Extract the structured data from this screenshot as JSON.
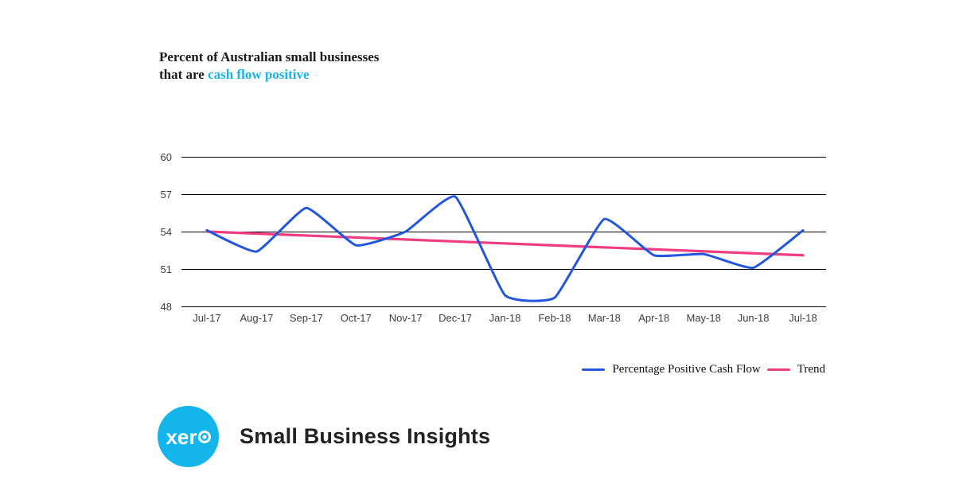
{
  "title": {
    "line1": "Percent of Australian small businesses",
    "line2_prefix": "that are ",
    "line2_highlight": "cash flow positive",
    "highlight_color": "#16b2ea",
    "text_color": "#1a1a1a"
  },
  "chart_data": {
    "type": "line",
    "title": "Percent of Australian small businesses that are cash flow positive",
    "x": [
      "Jul-17",
      "Aug-17",
      "Sep-17",
      "Oct-17",
      "Nov-17",
      "Dec-17",
      "Jan-18",
      "Feb-18",
      "Mar-18",
      "Apr-18",
      "May-18",
      "Jun-18",
      "Jul-18"
    ],
    "series": [
      {
        "name": "Percentage Positive Cash Flow",
        "color": "#2256dd",
        "style": "spline",
        "values": [
          54.1,
          52.4,
          55.9,
          52.9,
          54.0,
          56.8,
          48.9,
          48.7,
          55.0,
          52.1,
          52.2,
          51.1,
          54.1
        ]
      },
      {
        "name": "Trend",
        "color": "#ee3d80",
        "style": "linear",
        "values": [
          54.0,
          52.1
        ]
      }
    ],
    "xlabel": "",
    "ylabel": "",
    "ylim": [
      48,
      60
    ],
    "yticks": [
      48,
      51,
      54,
      57,
      60
    ],
    "grid": "horizontal",
    "gridline_color": "#000000",
    "axis_label_color": "#3d3d3d",
    "legend_position": "bottom-right"
  },
  "branding": {
    "logo_text": "xero",
    "logo_color": "#13b5ea",
    "tagline": "Small Business Insights"
  }
}
